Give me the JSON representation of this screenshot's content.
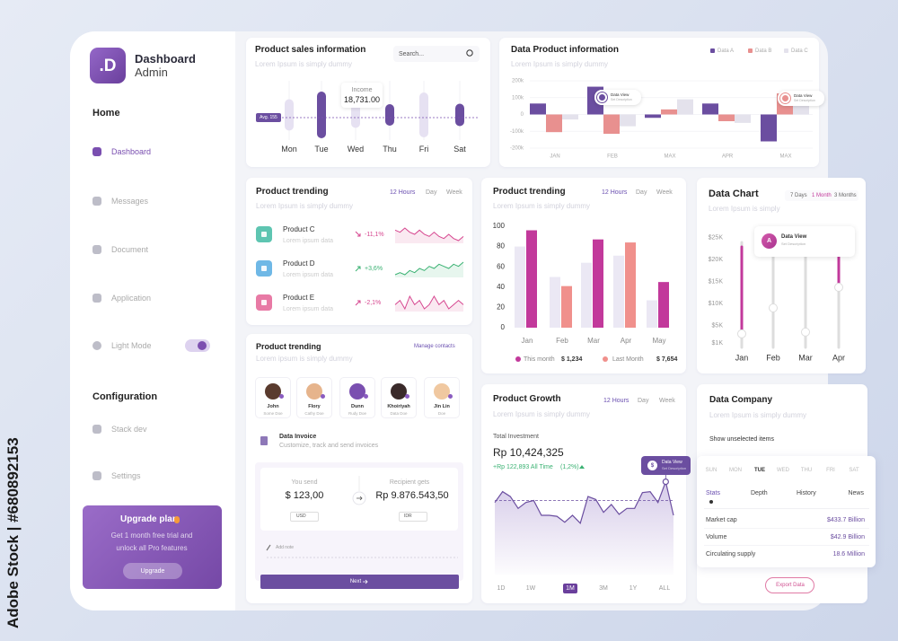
{
  "watermark": "Adobe Stock | #680892153",
  "sidebar": {
    "logo": ".D",
    "title": "Dashboard",
    "subtitle": "Admin",
    "home": "Home",
    "menu": [
      "Dashboard",
      "Messages",
      "Document",
      "Application",
      "Light Mode"
    ],
    "configuration": "Configuration",
    "config_menu": [
      "Stack dev",
      "Settings"
    ],
    "upgrade": {
      "title": "Upgrade plan",
      "text": [
        "Get 1 month free trial and",
        "unlock all Pro features"
      ],
      "button": "Upgrade"
    }
  },
  "sales": {
    "title": "Product sales information",
    "subtitle": "Lorem Ipsum is simply dummy",
    "search": "Search...",
    "avg": "Avg. 155",
    "tooltip": {
      "label": "Income",
      "value": "18,731.00"
    },
    "days": [
      "Mon",
      "Tue",
      "Wed",
      "Thu",
      "Fri",
      "Sat"
    ],
    "bar_lengths": [
      35,
      52,
      29,
      24,
      50,
      25
    ],
    "bar_colors": [
      "#e6e1f2",
      "#6b4ea0",
      "#e6e1f2",
      "#6b4ea0",
      "#e6e1f2",
      "#6b4ea0"
    ]
  },
  "product_info": {
    "title": "Data Product information",
    "subtitle": "Lorem Ipsum is simply dummy",
    "categories": [
      "JAN",
      "FEB",
      "MAX",
      "APR",
      "MAX"
    ],
    "ylim": [
      -200000,
      200000
    ],
    "yticks": [
      {
        "value": 200000,
        "label": "200k"
      },
      {
        "value": 100000,
        "label": "100k"
      },
      0,
      {
        "value": -100000,
        "label": "-100k"
      },
      {
        "value": -200000,
        "label": "-200k"
      }
    ],
    "grid": true,
    "series": [
      {
        "name": "Data A",
        "color": "#6b4ea0",
        "values": [
          65000,
          165000,
          -20000,
          65000,
          -160000
        ]
      },
      {
        "name": "Data B",
        "color": "#e8908f",
        "values": [
          -105000,
          -115000,
          30000,
          -40000,
          125000
        ]
      },
      {
        "name": "Data C",
        "color": "#e4e2ec",
        "values": [
          -30000,
          -70000,
          90000,
          -50000,
          90000
        ]
      }
    ],
    "tooltips": [
      {
        "title": "Data View",
        "text": "Set Description"
      },
      {
        "title": "Data View",
        "text": "Set Description"
      }
    ]
  },
  "trending_list": {
    "title": "Product trending",
    "subtitle": "Lorem Ipsum is simply dummy",
    "tabs": [
      "12 Hours",
      "Day",
      "Week"
    ],
    "items": [
      {
        "name": "Product C",
        "text": "Lorem ipsum data",
        "change": "-11,1%",
        "color": "#d6468f",
        "icon_color": "#5ec5b1",
        "sparkline": [
          8,
          7,
          9,
          7,
          6,
          8,
          6,
          5,
          7,
          5,
          4,
          6,
          4,
          3,
          5
        ]
      },
      {
        "name": "Product D",
        "text": "Lorem ipsum data",
        "change": "+3,6%",
        "color": "#3bb273",
        "icon_color": "#6fb8e6",
        "sparkline": [
          3,
          4,
          3,
          5,
          4,
          6,
          5,
          7,
          6,
          8,
          7,
          6,
          8,
          7,
          9
        ]
      },
      {
        "name": "Product E",
        "text": "Lorem ipsum data",
        "change": "-2,1%",
        "color": "#d6468f",
        "icon_color": "#e87aa5",
        "sparkline": [
          6,
          7,
          5,
          8,
          6,
          7,
          5,
          6,
          8,
          6,
          7,
          5,
          6,
          7,
          6
        ]
      }
    ]
  },
  "trending_bars": {
    "type": "bar",
    "title": "Product trending",
    "subtitle": "Lorem Ipsum is simply dummy",
    "tabs": [
      "12 Hours",
      "Day",
      "Week"
    ],
    "categories": [
      "Jan",
      "Feb",
      "Mar",
      "Apr",
      "May"
    ],
    "ylim": [
      0,
      100
    ],
    "yticks": [
      0,
      20,
      40,
      60,
      80,
      100
    ],
    "background_values": [
      80,
      50,
      64,
      71,
      27
    ],
    "background_color": "#ebe8f4",
    "values": [
      96,
      41,
      87,
      84,
      45
    ],
    "colors": [
      "#c2399b",
      "#f0908c",
      "#c2399b",
      "#f0908c",
      "#c2399b"
    ],
    "legend": [
      {
        "name": "This month",
        "amount": "$ 1,234",
        "color": "#c2399b"
      },
      {
        "name": "Last Month",
        "amount": "$ 7,654",
        "color": "#f0908c"
      }
    ]
  },
  "data_chart": {
    "title": "Data Chart",
    "subtitle": "Lorem Ipsum is simply",
    "tabs": [
      "7 Days",
      "1 Month",
      "3 Months"
    ],
    "categories": [
      "Jan",
      "Feb",
      "Mar",
      "Apr"
    ],
    "ylim": [
      0,
      27000
    ],
    "yticks": [
      {
        "value": 25000,
        "label": "$25K"
      },
      {
        "value": 20000,
        "label": "$20K"
      },
      {
        "value": 15000,
        "label": "$15K"
      },
      {
        "value": 10000,
        "label": "$10K"
      },
      {
        "value": 5000,
        "label": "$5K"
      },
      {
        "value": 1000,
        "label": "$1K"
      }
    ],
    "values": [
      3100,
      9000,
      3500,
      13700
    ],
    "highlight_ends": [
      22900,
      null,
      null,
      24500
    ],
    "highlight_color": "#c2399b",
    "tooltip": {
      "badge": "A",
      "title": "Data View",
      "text": "Set Description"
    }
  },
  "contacts": {
    "title": "Product trending",
    "subtitle": "Lorem ipsum is simply dummy",
    "link": "Manage contacts",
    "people": [
      {
        "name": "John",
        "role": "Some Doe"
      },
      {
        "name": "Flory",
        "role": "Cathy Doe"
      },
      {
        "name": "Dunn",
        "role": "Rudy Doe"
      },
      {
        "name": "Khoiriyah",
        "role": "Data Doe"
      },
      {
        "name": "Jin Lin",
        "role": "Doe"
      }
    ],
    "invoice": {
      "title": "Data Invoice",
      "text": "Customize, track and send invoices"
    },
    "send": {
      "label": "You send",
      "amount": "$ 123,00",
      "currency": "USD"
    },
    "receive": {
      "label": "Recipient gets",
      "amount": "Rp 9.876.543,50",
      "currency": "IDR"
    },
    "note": "Add note",
    "button": "Next"
  },
  "growth": {
    "title": "Product Growth",
    "subtitle": "Lorem Ipsum is simply dummy",
    "tabs": [
      "12 Hours",
      "Day",
      "Week"
    ],
    "label": "Total Investment",
    "total": "Rp 10,424,325",
    "change": "+Rp 122,893 All Time",
    "percent": "(1,2%)",
    "values": [
      73,
      84,
      79,
      67,
      73,
      75,
      60,
      60,
      59,
      53,
      60,
      52,
      79,
      76,
      63,
      71,
      61,
      67,
      67,
      83,
      84,
      73,
      94,
      60
    ],
    "reference_value": 75,
    "ranges": [
      "1D",
      "1W",
      "1M",
      "3M",
      "1Y",
      "ALL"
    ],
    "tooltip": {
      "badge": "$",
      "title": "Data View",
      "text": "Set Description"
    }
  },
  "company": {
    "title": "Data Company",
    "subtitle": "Lorem Ipsum is simply dummy",
    "toggle": "Show unselected items",
    "days": [
      "SUN",
      "MON",
      "TUE",
      "WED",
      "THU",
      "FRI",
      "SAT"
    ],
    "tabs": [
      "Stats",
      "Depth",
      "History",
      "News"
    ],
    "rows": [
      [
        "Market cap",
        "$433.7 Billion"
      ],
      [
        "Volume",
        "$42.9 Billion"
      ],
      [
        "Circulating supply",
        "18.6 Million"
      ]
    ],
    "button": "Export Data"
  }
}
